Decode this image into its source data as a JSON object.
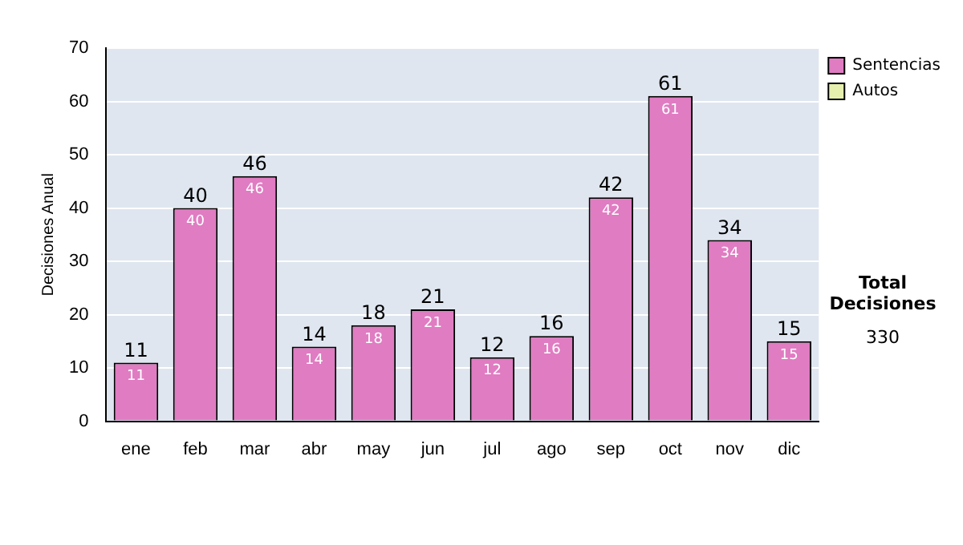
{
  "chart_data": {
    "type": "bar",
    "ylabel": "Decisiones Anual",
    "categories": [
      "ene",
      "feb",
      "mar",
      "abr",
      "may",
      "jun",
      "jul",
      "ago",
      "sep",
      "oct",
      "nov",
      "dic"
    ],
    "series": [
      {
        "name": "Sentencias",
        "color": "#e07cc2",
        "values": [
          11,
          40,
          46,
          14,
          18,
          21,
          12,
          16,
          42,
          61,
          34,
          15
        ],
        "value_labels": [
          "11",
          "40",
          "46",
          "14",
          "18",
          "21",
          "12",
          "16",
          "42",
          "61",
          "34",
          "15"
        ]
      },
      {
        "name": "Autos",
        "color": "#e6efae",
        "values": [
          0,
          0,
          0,
          0,
          0,
          0,
          0,
          0,
          0,
          0,
          0,
          0
        ]
      }
    ],
    "stacked": true,
    "totals": [
      "11",
      "40",
      "46",
      "14",
      "18",
      "21",
      "12",
      "16",
      "42",
      "61",
      "34",
      "15"
    ],
    "ylim": [
      0,
      70
    ],
    "yticks": [
      0,
      10,
      20,
      30,
      40,
      50,
      60,
      70
    ],
    "grid": "y",
    "legend": "right",
    "annotations": [
      "Total Decisiones",
      "330"
    ]
  }
}
